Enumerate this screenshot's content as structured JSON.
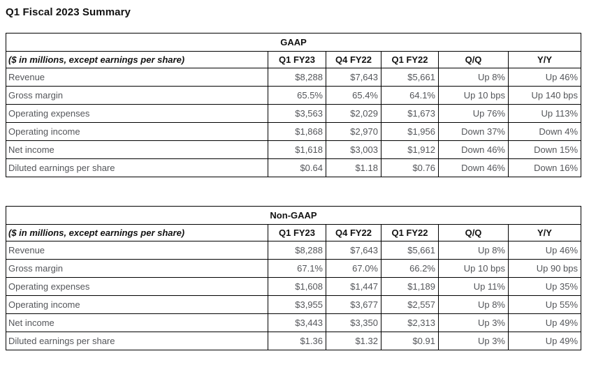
{
  "page_title": "Q1 Fiscal 2023 Summary",
  "colors": {
    "border": "#000000",
    "header_text": "#111111",
    "body_text": "#54565a",
    "background": "#ffffff"
  },
  "tables": [
    {
      "group_header": "GAAP",
      "unit_note": "($ in millions, except earnings per share)",
      "columns": [
        "Q1 FY23",
        "Q4 FY22",
        "Q1 FY22",
        "Q/Q",
        "Y/Y"
      ],
      "rows": [
        {
          "label": "Revenue",
          "values": [
            "$8,288",
            "$7,643",
            "$5,661",
            "Up 8%",
            "Up 46%"
          ]
        },
        {
          "label": "Gross margin",
          "values": [
            "65.5%",
            "65.4%",
            "64.1%",
            "Up 10 bps",
            "Up 140 bps"
          ]
        },
        {
          "label": "Operating expenses",
          "values": [
            "$3,563",
            "$2,029",
            "$1,673",
            "Up 76%",
            "Up 113%"
          ]
        },
        {
          "label": "Operating income",
          "values": [
            "$1,868",
            "$2,970",
            "$1,956",
            "Down 37%",
            "Down 4%"
          ]
        },
        {
          "label": "Net income",
          "values": [
            "$1,618",
            "$3,003",
            "$1,912",
            "Down 46%",
            "Down 15%"
          ]
        },
        {
          "label": "Diluted earnings per share",
          "values": [
            "$0.64",
            "$1.18",
            "$0.76",
            "Down 46%",
            "Down 16%"
          ]
        }
      ]
    },
    {
      "group_header": "Non-GAAP",
      "unit_note": "($ in millions, except earnings per share)",
      "columns": [
        "Q1 FY23",
        "Q4 FY22",
        "Q1 FY22",
        "Q/Q",
        "Y/Y"
      ],
      "rows": [
        {
          "label": "Revenue",
          "values": [
            "$8,288",
            "$7,643",
            "$5,661",
            "Up 8%",
            "Up 46%"
          ]
        },
        {
          "label": "Gross margin",
          "values": [
            "67.1%",
            "67.0%",
            "66.2%",
            "Up 10 bps",
            "Up 90 bps"
          ]
        },
        {
          "label": "Operating expenses",
          "values": [
            "$1,608",
            "$1,447",
            "$1,189",
            "Up 11%",
            "Up 35%"
          ]
        },
        {
          "label": "Operating income",
          "values": [
            "$3,955",
            "$3,677",
            "$2,557",
            "Up 8%",
            "Up 55%"
          ]
        },
        {
          "label": "Net income",
          "values": [
            "$3,443",
            "$3,350",
            "$2,313",
            "Up 3%",
            "Up 49%"
          ]
        },
        {
          "label": "Diluted earnings per share",
          "values": [
            "$1.36",
            "$1.32",
            "$0.91",
            "Up 3%",
            "Up 49%"
          ]
        }
      ]
    }
  ]
}
